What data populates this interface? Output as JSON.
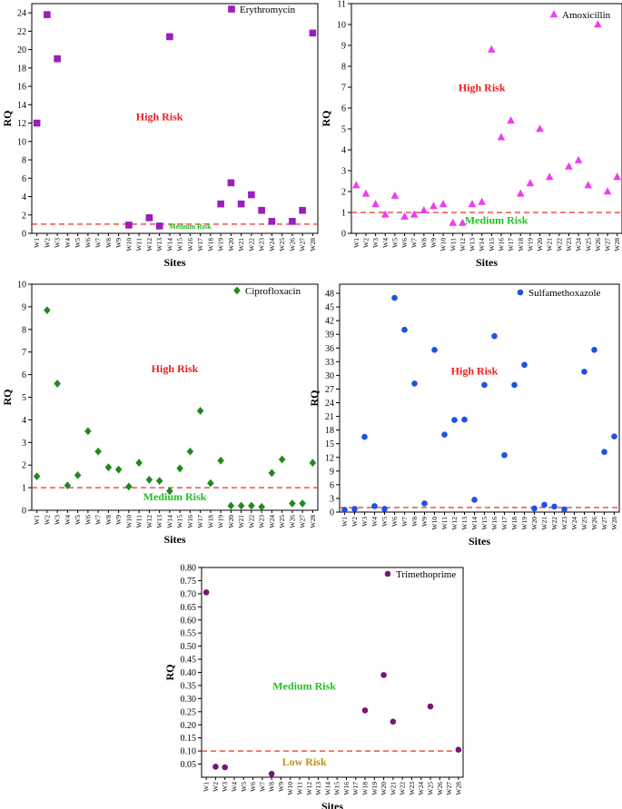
{
  "chart_data": [
    {
      "type": "scatter",
      "legend": "Erythromycin",
      "xlabel": "Sites",
      "ylabel": "RQ",
      "ylim": [
        0,
        25
      ],
      "yticks": [
        0,
        2,
        4,
        6,
        8,
        10,
        12,
        14,
        16,
        18,
        20,
        22,
        24
      ],
      "categories": [
        "W1",
        "W2",
        "W3",
        "W4",
        "W5",
        "W6",
        "W7",
        "W8",
        "W9",
        "W10",
        "W11",
        "W12",
        "W13",
        "W14",
        "W15",
        "W16",
        "W17",
        "W18",
        "W19",
        "W20",
        "W21",
        "W22",
        "W23",
        "W24",
        "W25",
        "W26",
        "W27",
        "W28"
      ],
      "values": [
        12,
        23.8,
        19,
        null,
        null,
        null,
        null,
        null,
        null,
        0.9,
        null,
        1.7,
        0.8,
        21.4,
        null,
        null,
        null,
        null,
        3.2,
        5.5,
        3.2,
        4.2,
        2.5,
        1.3,
        null,
        1.3,
        2.5,
        21.8
      ],
      "marker": "square",
      "color": "#9b1dbf",
      "threshold": 1,
      "annotations": [
        {
          "text": "High Risk",
          "x": 13,
          "y": 12.3,
          "color": "#e82020"
        },
        {
          "text": "Medium Risk",
          "x": 16,
          "y": 0.5,
          "color": "#22b822"
        }
      ]
    },
    {
      "type": "scatter",
      "legend": "Amoxicillin",
      "xlabel": "Sites",
      "ylabel": "RQ",
      "ylim": [
        0,
        11
      ],
      "yticks": [
        0,
        1,
        2,
        3,
        4,
        5,
        6,
        7,
        8,
        9,
        10,
        11
      ],
      "categories": [
        "W1",
        "W2",
        "W3",
        "W4",
        "W5",
        "W6",
        "W7",
        "W8",
        "W9",
        "W10",
        "W11",
        "W12",
        "W13",
        "W14",
        "W15",
        "W16",
        "W17",
        "W18",
        "W19",
        "W20",
        "W21",
        "W22",
        "W23",
        "W24",
        "W25",
        "W26",
        "W27",
        "W28"
      ],
      "values": [
        2.3,
        1.9,
        1.4,
        0.9,
        1.8,
        0.8,
        0.9,
        1.1,
        1.3,
        1.4,
        0.5,
        0.5,
        1.4,
        1.5,
        8.8,
        4.6,
        5.4,
        1.9,
        2.4,
        5.0,
        2.7,
        null,
        3.2,
        3.5,
        2.3,
        10.0,
        2.0,
        2.7
      ],
      "marker": "triangle",
      "color": "#f03cf0",
      "threshold": 1,
      "annotations": [
        {
          "text": "High Risk",
          "x": 14,
          "y": 6.8,
          "color": "#e82020"
        },
        {
          "text": "Medium Risk",
          "x": 15.5,
          "y": 0.45,
          "color": "#22c022"
        }
      ]
    },
    {
      "type": "scatter",
      "legend": "Ciprofloxacin",
      "xlabel": "Sites",
      "ylabel": "RQ",
      "ylim": [
        0,
        10
      ],
      "yticks": [
        0,
        1,
        2,
        3,
        4,
        5,
        6,
        7,
        8,
        9,
        10
      ],
      "categories": [
        "W1",
        "W2",
        "W3",
        "W4",
        "W5",
        "W6",
        "W7",
        "W8",
        "W9",
        "W10",
        "W11",
        "W12",
        "W13",
        "W14",
        "W15",
        "W16",
        "W17",
        "W18",
        "W19",
        "W20",
        "W21",
        "W22",
        "W23",
        "W24",
        "W25",
        "W26",
        "W27",
        "W28"
      ],
      "values": [
        1.5,
        8.85,
        5.6,
        1.1,
        1.55,
        3.5,
        2.6,
        1.9,
        1.8,
        1.05,
        2.1,
        1.35,
        1.3,
        0.85,
        1.85,
        2.6,
        4.4,
        1.2,
        2.2,
        0.2,
        0.2,
        0.2,
        0.15,
        1.65,
        2.25,
        0.3,
        0.3,
        2.1
      ],
      "marker": "diamond",
      "color": "#1e8a1e",
      "threshold": 1,
      "annotations": [
        {
          "text": "High Risk",
          "x": 14.5,
          "y": 6.1,
          "color": "#e82020"
        },
        {
          "text": "Medium Risk",
          "x": 14.5,
          "y": 0.45,
          "color": "#22c022"
        }
      ]
    },
    {
      "type": "scatter",
      "legend": "Sulfamethoxazole",
      "xlabel": "Sites",
      "ylabel": "RQ",
      "ylim": [
        0,
        50
      ],
      "yticks": [
        0,
        3,
        6,
        9,
        12,
        15,
        18,
        21,
        24,
        27,
        30,
        33,
        36,
        39,
        42,
        45,
        48
      ],
      "categories": [
        "W1",
        "W2",
        "W3",
        "W4",
        "W5",
        "W6",
        "W7",
        "W8",
        "W9",
        "W10",
        "W11",
        "W12",
        "W13",
        "W14",
        "W15",
        "W16",
        "W17",
        "W18",
        "W19",
        "W20",
        "W21",
        "W22",
        "W23",
        "W24",
        "W25",
        "W26",
        "W27",
        "W28"
      ],
      "values": [
        0.5,
        0.7,
        16.5,
        1.3,
        0.7,
        47,
        40,
        28.2,
        1.9,
        35.6,
        17,
        20.2,
        20.3,
        2.7,
        27.9,
        38.6,
        12.5,
        27.9,
        32.3,
        0.8,
        1.6,
        1.2,
        0.6,
        null,
        30.8,
        35.6,
        13.2,
        16.6
      ],
      "marker": "circle",
      "color": "#1f50e8",
      "threshold": 1,
      "annotations": [
        {
          "text": "High Risk",
          "x": 14,
          "y": 30.2,
          "color": "#e82020"
        }
      ]
    },
    {
      "type": "scatter",
      "legend": "Trimethoprime",
      "xlabel": "Sites",
      "ylabel": "RQ",
      "ylim": [
        0,
        0.8
      ],
      "yticks": [
        "0.05",
        "0.10",
        "0.15",
        "0.20",
        "0.25",
        "0.30",
        "0.35",
        "0.40",
        "0.45",
        "0.50",
        "0.55",
        "0.60",
        "0.65",
        "0.70",
        "0.75",
        "0.80"
      ],
      "categories": [
        "W1",
        "W2",
        "W3",
        "W4",
        "W5",
        "W6",
        "W7",
        "W8",
        "W9",
        "W10",
        "W11",
        "W12",
        "W13",
        "W14",
        "W15",
        "W16",
        "W17",
        "W18",
        "W19",
        "W20",
        "W21",
        "W22",
        "W23",
        "W24",
        "W25",
        "W26",
        "W27",
        "W28"
      ],
      "values": [
        0.705,
        0.04,
        0.038,
        null,
        null,
        null,
        null,
        0.013,
        null,
        null,
        null,
        null,
        null,
        null,
        null,
        null,
        null,
        0.255,
        null,
        0.39,
        0.212,
        null,
        null,
        null,
        0.27,
        null,
        null,
        0.105
      ],
      "marker": "circle",
      "color": "#7a1476",
      "threshold": 0.1,
      "annotations": [
        {
          "text": "Medium Risk",
          "x": 11.5,
          "y": 0.335,
          "color": "#22c022"
        },
        {
          "text": "Low Risk",
          "x": 11.5,
          "y": 0.045,
          "color": "#b89216"
        }
      ]
    }
  ]
}
